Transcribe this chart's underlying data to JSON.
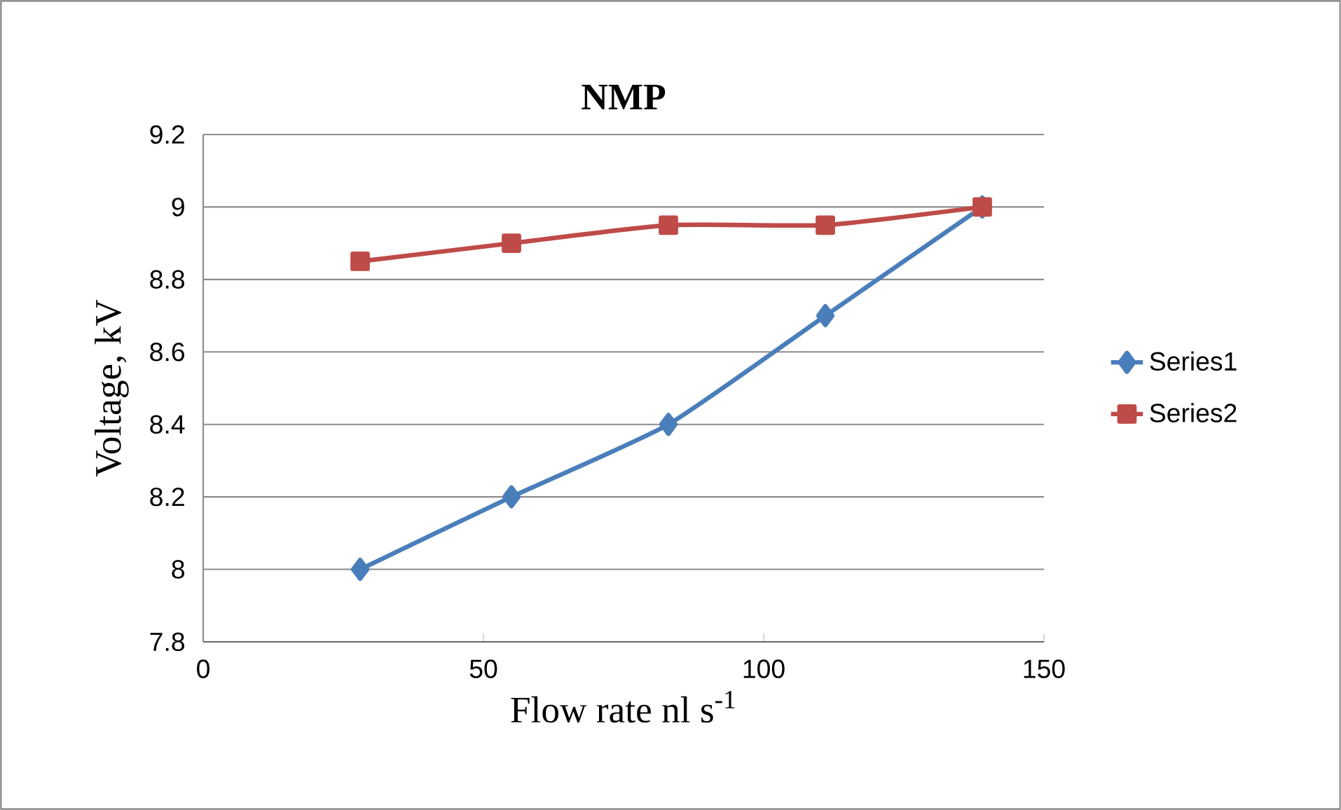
{
  "chart_data": {
    "type": "line",
    "title": "NMP",
    "xlabel": "Flow rate nl s$^{-1}$",
    "ylabel": "Voltage, kV",
    "x": [
      28,
      55,
      83,
      111,
      139
    ],
    "series": [
      {
        "name": "Series1",
        "color": "#4a7ebb",
        "marker": "diamond",
        "values": [
          8,
          8.2,
          8.4,
          8.7,
          9
        ]
      },
      {
        "name": "Series2",
        "color": "#be4b48",
        "marker": "square",
        "values": [
          8.85,
          8.9,
          8.95,
          8.95,
          9
        ]
      }
    ],
    "xlim": [
      0,
      150
    ],
    "xticks": [
      0,
      50,
      100,
      150
    ],
    "ylim": [
      7.8,
      9.2
    ],
    "yticks": [
      7.8,
      8,
      8.2,
      8.4,
      8.6,
      8.8,
      9,
      9.2
    ],
    "grid": "y",
    "legend": "right"
  }
}
